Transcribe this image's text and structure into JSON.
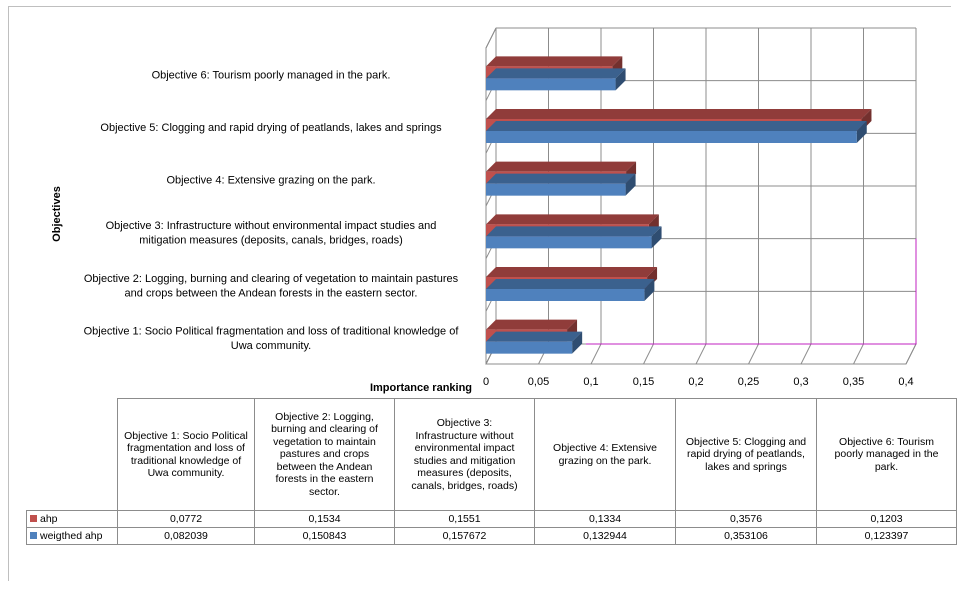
{
  "chart_data": {
    "type": "bar",
    "orientation": "horizontal",
    "style": "3d-clustered",
    "title": "",
    "xlabel": "Importance ranking",
    "ylabel": "Objectives",
    "xlim": [
      0,
      0.4
    ],
    "x_ticks": [
      "0",
      "0,05",
      "0,1",
      "0,15",
      "0,2",
      "0,25",
      "0,3",
      "0,35",
      "0,4"
    ],
    "grid": true,
    "legend": "data-table",
    "categories": [
      "Objective 1: Socio Political fragmentation and loss of traditional knowledge of Uwa community.",
      "Objective 2: Logging, burning and clearing of vegetation to maintain pastures and crops between the Andean forests in the eastern sector.",
      "Objective 3: Infrastructure without environmental impact studies and mitigation measures (deposits, canals, bridges,  roads)",
      "Objective 4: Extensive grazing on the park.",
      "Objective 5: Clogging and rapid drying of peatlands, lakes and  springs",
      "Objective 6: Tourism poorly managed in the park."
    ],
    "axis_labels": [
      [
        "Objective 1: Socio Political fragmentation and loss of traditional knowledge of",
        "Uwa community."
      ],
      [
        "Objective 2: Logging, burning and clearing of vegetation to maintain pastures",
        "and crops between the Andean forests in the eastern sector."
      ],
      [
        "Objective 3: Infrastructure without environmental impact studies and",
        "mitigation measures (deposits, canals, bridges,  roads)"
      ],
      [
        "Objective 4: Extensive grazing on the park."
      ],
      [
        "Objective 5: Clogging and rapid drying of peatlands, lakes and  springs"
      ],
      [
        "Objective 6: Tourism poorly managed in the park."
      ]
    ],
    "table_headers": [
      [
        "Objective 1: Socio Political",
        "fragmentation and loss of",
        "traditional knowledge of",
        "Uwa community."
      ],
      [
        "Objective 2: Logging,",
        "burning and clearing of",
        "vegetation to maintain",
        "pastures and crops",
        "between the Andean",
        "forests in the eastern",
        "sector."
      ],
      [
        "Objective 3:",
        "Infrastructure without",
        "environmental impact",
        "studies and mitigation",
        "measures (deposits,",
        "canals, bridges, roads)"
      ],
      [
        "Objective 4: Extensive",
        "grazing on the park."
      ],
      [
        "Objective 5: Clogging and",
        "rapid drying of peatlands,",
        "lakes and springs"
      ],
      [
        "Objective 6: Tourism",
        "poorly managed in the",
        "park."
      ]
    ],
    "series": [
      {
        "name": "ahp",
        "color": "#c0504d",
        "values": [
          0.0772,
          0.1534,
          0.1551,
          0.1334,
          0.3576,
          0.1203
        ],
        "labels": [
          "0,0772",
          "0,1534",
          "0,1551",
          "0,1334",
          "0,3576",
          "0,1203"
        ]
      },
      {
        "name": "weigthed ahp",
        "color": "#4f81bd",
        "values": [
          0.082039,
          0.150843,
          0.157672,
          0.132944,
          0.353106,
          0.123397
        ],
        "labels": [
          "0,082039",
          "0,150843",
          "0,157672",
          "0,132944",
          "0,353106",
          "0,123397"
        ]
      }
    ]
  }
}
